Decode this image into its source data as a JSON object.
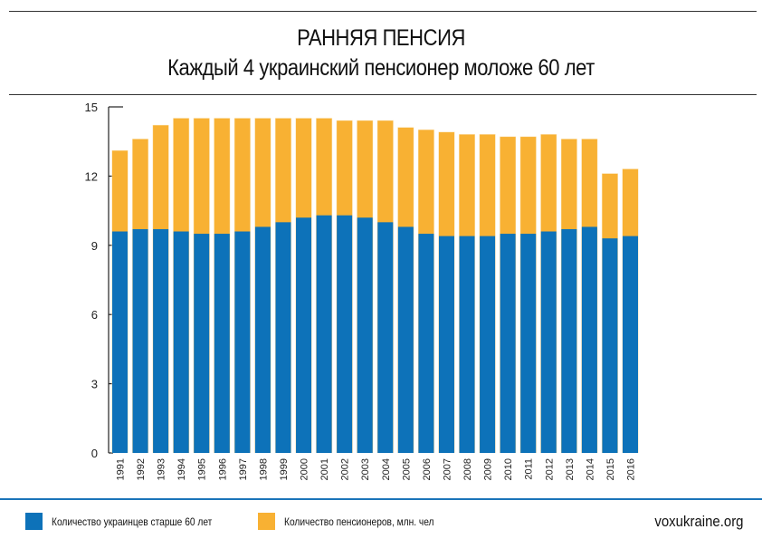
{
  "header": {
    "title": "РАННЯЯ ПЕНСИЯ",
    "subtitle": "Каждый 4 украинский пенсионер моложе 60 лет"
  },
  "chart_data": {
    "type": "bar",
    "title": "РАННЯЯ ПЕНСИЯ",
    "subtitle": "Каждый 4 украинский пенсионер моложе 60 лет",
    "xlabel": "",
    "ylabel": "млн. чел",
    "ylim": [
      0,
      15
    ],
    "yticks": [
      0,
      3,
      6,
      9,
      12,
      15
    ],
    "grid": false,
    "legend_position": "bottom-left",
    "categories": [
      "1991",
      "1992",
      "1993",
      "1994",
      "1995",
      "1996",
      "1997",
      "1998",
      "1999",
      "2000",
      "2001",
      "2002",
      "2003",
      "2004",
      "2005",
      "2006",
      "2007",
      "2008",
      "2009",
      "2010",
      "2011",
      "2012",
      "2013",
      "2014",
      "2015",
      "2016"
    ],
    "series": [
      {
        "name": "Количество пенсионеров,  млн. чел",
        "color": "#f8b133",
        "values": [
          13.1,
          13.6,
          14.2,
          14.5,
          14.5,
          14.5,
          14.5,
          14.5,
          14.5,
          14.5,
          14.5,
          14.4,
          14.4,
          14.4,
          14.1,
          14.0,
          13.9,
          13.8,
          13.8,
          13.7,
          13.7,
          13.8,
          13.6,
          13.6,
          12.1,
          12.3
        ]
      },
      {
        "name": "Количество украинцев старше 60 лет",
        "color": "#0d72b9",
        "values": [
          9.6,
          9.7,
          9.7,
          9.6,
          9.5,
          9.5,
          9.6,
          9.8,
          10.0,
          10.2,
          10.3,
          10.3,
          10.2,
          10.0,
          9.8,
          9.5,
          9.4,
          9.4,
          9.4,
          9.5,
          9.5,
          9.6,
          9.7,
          9.8,
          9.3,
          9.4
        ]
      }
    ]
  },
  "legend": [
    {
      "label": "Количество украинцев старше 60 лет",
      "color": "#0d72b9"
    },
    {
      "label": "Количество пенсионеров,  млн. чел",
      "color": "#f8b133"
    }
  ],
  "footer": {
    "site": "voxukraine.org"
  }
}
